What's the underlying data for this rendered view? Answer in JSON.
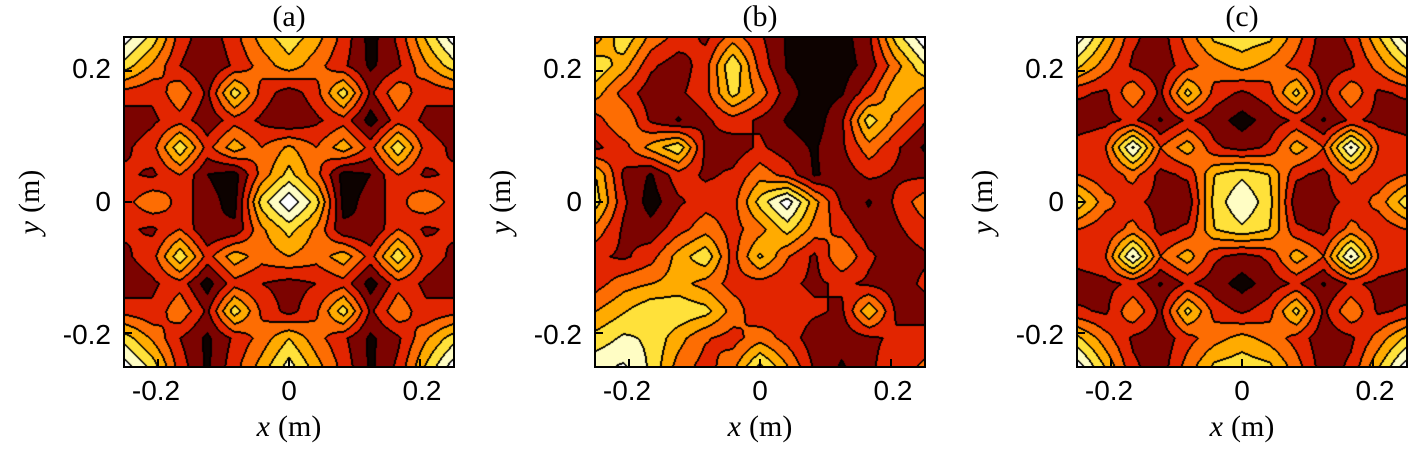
{
  "chart_data": {
    "type": "heatmap",
    "subtype": "filled-contour",
    "colormap_name": "hot",
    "colormap": [
      "#0d0200",
      "#7c0300",
      "#e22500",
      "#fd6d03",
      "#ffab00",
      "#ffe13a",
      "#fffdc4",
      "#ffffff"
    ],
    "contour_line_color": "#000000",
    "xlim": [
      -0.25,
      0.25
    ],
    "ylim": [
      -0.25,
      0.25
    ],
    "panels": [
      {
        "title": "(a)",
        "xlabel_var": "x",
        "xlabel_unit": "(m)",
        "ylabel_var": "y",
        "ylabel_unit": "(m)",
        "xtick_labels": [
          "-0.2",
          "0",
          "0.2"
        ],
        "ytick_labels": [
          "0.2",
          "0",
          "-0.2"
        ],
        "xtick_values": [
          -0.2,
          0,
          0.2
        ],
        "ytick_values": [
          0.2,
          0,
          -0.2
        ],
        "grid": [
          [
            7.4,
            5.5,
            2.5,
            1.3,
            2.6,
            4.4,
            5.6,
            4.4,
            2.6,
            0.6,
            2.2,
            5.0,
            7.4
          ],
          [
            5.5,
            3.8,
            2.0,
            1.0,
            2.2,
            3.4,
            4.6,
            3.4,
            2.2,
            0.8,
            1.8,
            3.8,
            5.5
          ],
          [
            2.6,
            2.2,
            3.8,
            1.8,
            5.6,
            2.6,
            1.4,
            2.6,
            5.6,
            1.8,
            3.8,
            2.2,
            2.6
          ],
          [
            1.3,
            1.8,
            2.6,
            1.2,
            2.6,
            1.8,
            1.0,
            1.8,
            2.6,
            0.5,
            2.6,
            1.8,
            1.3
          ],
          [
            1.8,
            2.6,
            5.8,
            2.6,
            4.6,
            3.0,
            4.2,
            3.0,
            4.6,
            2.6,
            5.8,
            2.6,
            1.8
          ],
          [
            2.2,
            1.8,
            3.0,
            1.0,
            0.6,
            3.4,
            5.4,
            3.4,
            0.6,
            1.0,
            3.0,
            1.8,
            2.2
          ],
          [
            2.6,
            3.9,
            2.6,
            1.3,
            0.7,
            5.5,
            7.8,
            5.5,
            0.7,
            1.3,
            2.6,
            3.9,
            2.6
          ],
          [
            2.2,
            1.8,
            3.0,
            1.0,
            1.2,
            3.8,
            5.4,
            3.8,
            1.2,
            1.0,
            3.0,
            1.8,
            2.2
          ],
          [
            1.8,
            2.6,
            5.8,
            2.6,
            4.6,
            3.4,
            4.0,
            3.4,
            4.6,
            2.6,
            5.8,
            2.6,
            1.8
          ],
          [
            1.3,
            1.8,
            2.6,
            0.5,
            2.6,
            2.0,
            1.6,
            2.0,
            2.6,
            0.5,
            2.6,
            1.8,
            1.3
          ],
          [
            2.6,
            2.2,
            3.8,
            1.8,
            5.6,
            2.8,
            1.6,
            2.8,
            5.6,
            1.8,
            3.8,
            2.2,
            2.6
          ],
          [
            5.5,
            3.8,
            2.0,
            0.8,
            2.2,
            3.4,
            5.0,
            3.4,
            2.2,
            0.8,
            1.8,
            3.8,
            5.5
          ],
          [
            7.4,
            5.5,
            2.5,
            0.8,
            2.6,
            4.4,
            6.4,
            4.4,
            2.6,
            0.8,
            2.2,
            5.0,
            7.4
          ]
        ]
      },
      {
        "title": "(b)",
        "xlabel_var": "x",
        "xlabel_unit": "(m)",
        "ylabel_var": "y",
        "ylabel_unit": "(m)",
        "xtick_labels": [
          "-0.2",
          "0",
          "0.2"
        ],
        "ytick_labels": [
          "0.2",
          "0",
          "-0.2"
        ],
        "xtick_values": [
          -0.2,
          0,
          0.2
        ],
        "ytick_values": [
          0.2,
          0,
          -0.2
        ],
        "grid": [
          [
            3.6,
            5.8,
            3.6,
            2.6,
            1.8,
            3.6,
            2.2,
            0.9,
            0.5,
            0.5,
            1.8,
            5.4,
            7.6
          ],
          [
            5.8,
            4.4,
            2.2,
            1.4,
            2.6,
            6.0,
            2.6,
            0.9,
            0.5,
            0.5,
            1.4,
            3.6,
            5.8
          ],
          [
            4.4,
            2.6,
            1.4,
            1.8,
            2.6,
            5.4,
            3.6,
            1.4,
            0.5,
            0.9,
            2.6,
            4.9,
            3.6
          ],
          [
            2.6,
            4.0,
            1.8,
            0.9,
            1.8,
            2.6,
            1.8,
            0.9,
            0.5,
            1.8,
            5.6,
            3.6,
            2.2
          ],
          [
            1.8,
            2.6,
            4.4,
            5.8,
            1.8,
            1.4,
            2.2,
            1.4,
            0.9,
            1.8,
            3.6,
            2.2,
            0.9
          ],
          [
            4.9,
            1.8,
            0.9,
            2.6,
            1.8,
            2.2,
            3.6,
            2.6,
            0.9,
            1.4,
            2.2,
            1.8,
            1.8
          ],
          [
            5.4,
            2.2,
            0.5,
            1.8,
            2.6,
            2.6,
            5.4,
            7.6,
            4.4,
            1.8,
            0.9,
            2.2,
            3.6
          ],
          [
            3.6,
            1.8,
            1.4,
            2.6,
            3.6,
            2.6,
            3.6,
            5.4,
            3.6,
            2.6,
            1.4,
            1.8,
            2.6
          ],
          [
            2.2,
            1.8,
            2.6,
            4.4,
            5.8,
            2.6,
            5.2,
            3.1,
            1.8,
            4.0,
            2.2,
            1.4,
            1.8
          ],
          [
            2.6,
            3.6,
            4.0,
            4.4,
            3.6,
            2.6,
            2.6,
            2.2,
            1.8,
            2.2,
            1.8,
            1.4,
            2.2
          ],
          [
            4.0,
            4.9,
            5.8,
            5.8,
            5.4,
            3.6,
            2.2,
            2.6,
            2.2,
            1.8,
            4.9,
            1.8,
            1.4
          ],
          [
            5.4,
            6.2,
            5.8,
            4.4,
            3.1,
            2.6,
            3.6,
            2.6,
            1.4,
            1.4,
            1.8,
            2.2,
            2.6
          ],
          [
            6.7,
            7.1,
            5.8,
            3.6,
            2.6,
            3.6,
            6.2,
            4.0,
            1.8,
            0.9,
            1.8,
            2.6,
            3.1
          ]
        ]
      },
      {
        "title": "(c)",
        "xlabel_var": "x",
        "xlabel_unit": "(m)",
        "ylabel_var": "y",
        "ylabel_unit": "(m)",
        "xtick_labels": [
          "-0.2",
          "0",
          "0.2"
        ],
        "ytick_labels": [
          "0.2",
          "0",
          "-0.2"
        ],
        "xtick_values": [
          -0.2,
          0,
          0.2
        ],
        "ytick_values": [
          0.2,
          0,
          -0.2
        ],
        "grid": [
          [
            7.4,
            4.8,
            2.2,
            1.4,
            3.4,
            5.2,
            5.6,
            5.2,
            3.4,
            1.4,
            2.2,
            4.8,
            7.4
          ],
          [
            5.2,
            3.4,
            1.8,
            1.3,
            2.6,
            3.6,
            4.4,
            3.6,
            2.6,
            1.3,
            1.8,
            3.4,
            5.2
          ],
          [
            2.2,
            1.8,
            3.9,
            1.8,
            5.4,
            2.6,
            1.8,
            2.6,
            5.4,
            1.8,
            3.9,
            1.8,
            2.2
          ],
          [
            1.3,
            1.7,
            2.2,
            0.9,
            2.2,
            1.4,
            0.6,
            1.4,
            2.2,
            0.9,
            2.2,
            1.7,
            1.3
          ],
          [
            2.6,
            3.0,
            7.2,
            3.0,
            4.6,
            2.2,
            1.6,
            2.2,
            4.6,
            3.0,
            7.2,
            3.0,
            2.6
          ],
          [
            3.0,
            2.2,
            3.4,
            1.7,
            2.2,
            5.0,
            5.8,
            5.0,
            2.2,
            1.7,
            3.4,
            2.2,
            3.0
          ],
          [
            5.6,
            3.4,
            2.2,
            1.7,
            1.3,
            5.4,
            6.9,
            5.4,
            1.3,
            1.7,
            2.2,
            3.4,
            5.6
          ],
          [
            3.0,
            2.2,
            3.4,
            1.7,
            2.2,
            5.0,
            5.8,
            5.0,
            2.2,
            1.7,
            3.4,
            2.2,
            3.0
          ],
          [
            2.6,
            3.0,
            7.2,
            3.0,
            4.6,
            2.2,
            1.6,
            2.2,
            4.6,
            3.0,
            7.2,
            3.0,
            2.6
          ],
          [
            1.3,
            1.7,
            2.2,
            0.9,
            2.2,
            1.4,
            0.6,
            1.4,
            2.2,
            0.9,
            2.2,
            1.7,
            1.3
          ],
          [
            2.2,
            1.8,
            3.9,
            1.8,
            5.4,
            2.6,
            1.8,
            2.6,
            5.4,
            1.8,
            3.9,
            1.8,
            2.2
          ],
          [
            5.2,
            3.4,
            1.8,
            1.3,
            2.6,
            3.6,
            4.4,
            3.6,
            2.6,
            1.3,
            1.8,
            3.4,
            5.2
          ],
          [
            7.4,
            4.8,
            2.2,
            1.4,
            3.4,
            5.2,
            5.6,
            5.2,
            3.4,
            1.4,
            2.2,
            4.8,
            7.4
          ]
        ]
      }
    ]
  }
}
